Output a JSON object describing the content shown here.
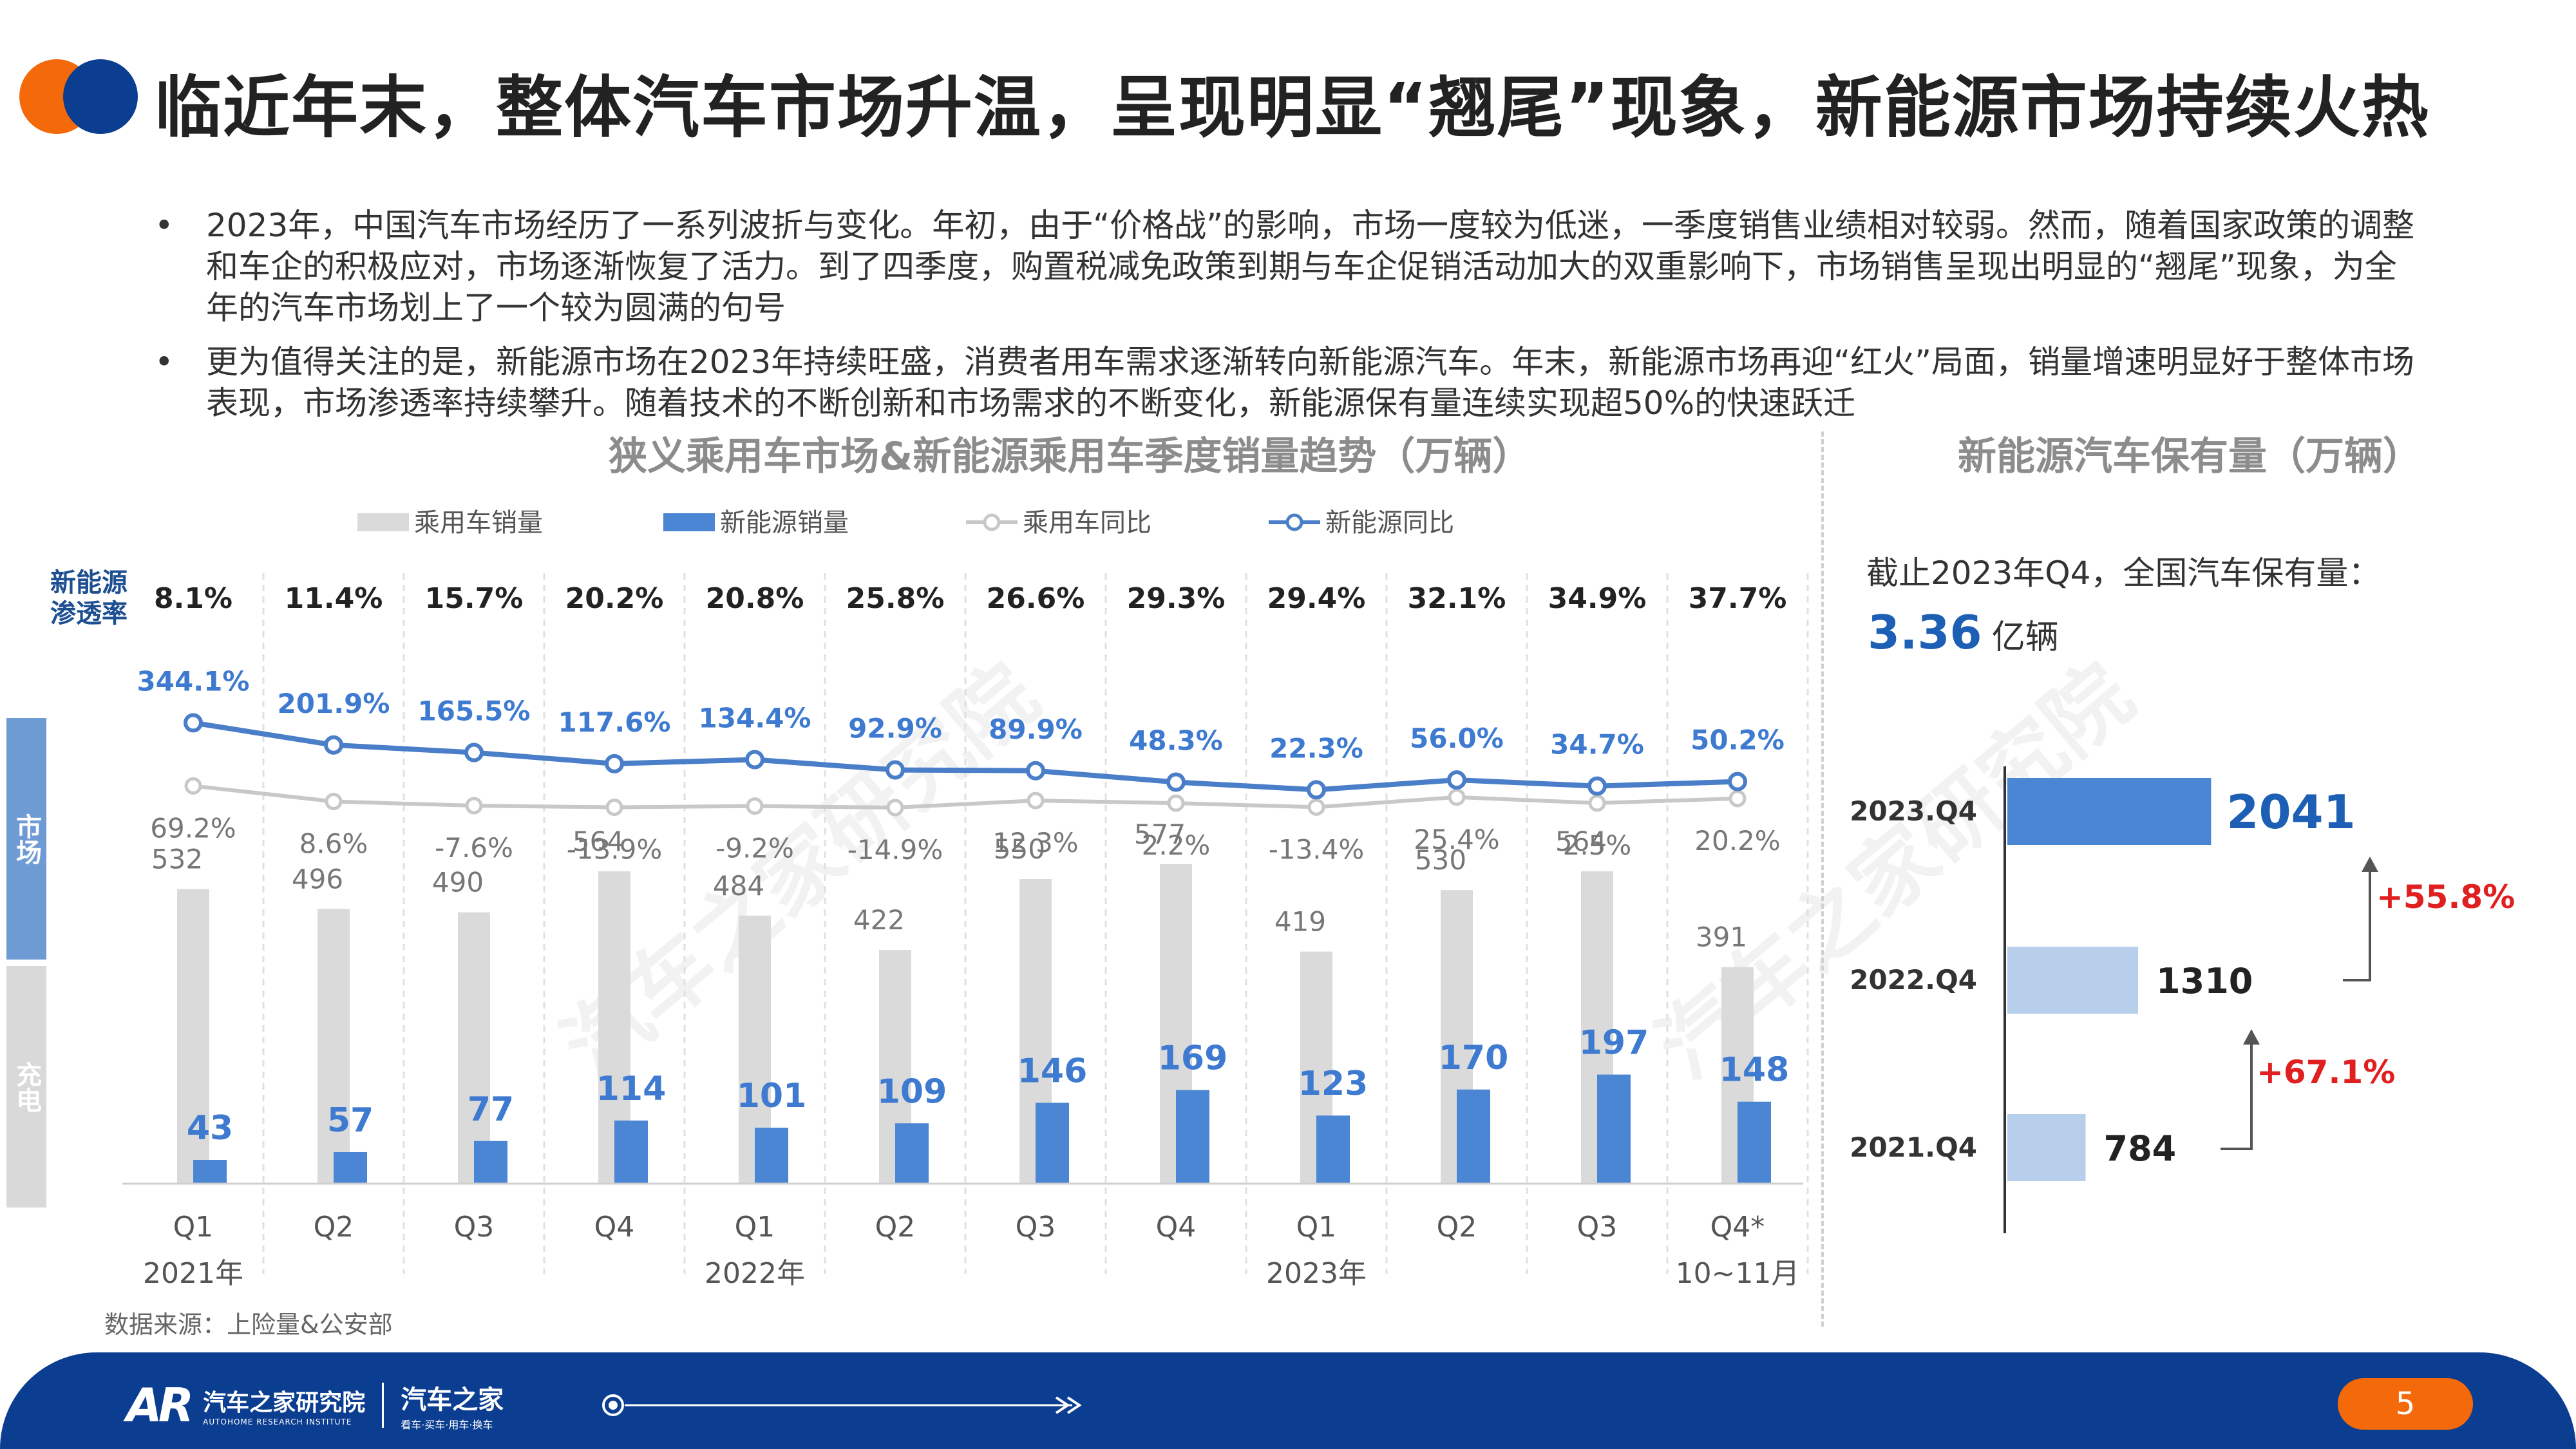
{
  "header": {
    "title": "临近年末，整体汽车市场升温，呈现明显“翘尾”现象，新能源市场持续火热",
    "colors": {
      "orange": "#f46a0b",
      "blue": "#0b3d91"
    }
  },
  "bullets": [
    {
      "marker": "•",
      "text": "2023年，中国汽车市场经历了一系列波折与变化。年初，由于“价格战”的影响，市场一度较为低迷，一季度销售业绩相对较弱。然而，随着国家政策的调整和车企的积极应对，市场逐渐恢复了活力。到了四季度，购置税减免政策到期与车企促销活动加大的双重影响下，市场销售呈现出明显的“翘尾”现象，为全年的汽车市场划上了一个较为圆满的句号"
    },
    {
      "marker": "•",
      "text": "更为值得关注的是，新能源市场在2023年持续旺盛，消费者用车需求逐渐转向新能源汽车。年末，新能源市场再迎“红火”局面，销量增速明显好于整体市场表现，市场渗透率持续攀升。随着技术的不断创新和市场需求的不断变化，新能源保有量连续实现超50%的快速跃迁"
    }
  ],
  "watermark": "汽车之家研究院",
  "side_tabs": {
    "market": "市场",
    "charging": "充电"
  },
  "source_note": "数据来源：上险量&公安部",
  "chart_data": [
    {
      "type": "bar",
      "title": "狭义乘用车市场&新能源乘用车季度销量趋势（万辆）",
      "legend": [
        "乘用车销量",
        "新能源销量",
        "乘用车同比",
        "新能源同比"
      ],
      "legend_position": "top",
      "penetration_label": "新能源渗透率",
      "penetration": [
        "8.1%",
        "11.4%",
        "15.7%",
        "20.2%",
        "20.8%",
        "25.8%",
        "26.6%",
        "29.3%",
        "29.4%",
        "32.1%",
        "34.9%",
        "37.7%"
      ],
      "categories": [
        "Q1",
        "Q2",
        "Q3",
        "Q4",
        "Q1",
        "Q2",
        "Q3",
        "Q4",
        "Q1",
        "Q2",
        "Q3",
        "Q4*"
      ],
      "year_labels": [
        {
          "label": "2021年",
          "index": 0
        },
        {
          "label": "2022年",
          "index": 4
        },
        {
          "label": "2023年",
          "index": 8
        },
        {
          "label": "10~11月",
          "index": 11
        }
      ],
      "series": [
        {
          "name": "乘用车销量",
          "kind": "bar",
          "color": "#dadada",
          "values": [
            532,
            496,
            490,
            564,
            484,
            422,
            550,
            577,
            419,
            530,
            564,
            391
          ]
        },
        {
          "name": "新能源销量",
          "kind": "bar",
          "color": "#4a86d4",
          "values": [
            43,
            57,
            77,
            114,
            101,
            109,
            146,
            169,
            123,
            170,
            197,
            148
          ]
        },
        {
          "name": "乘用车同比",
          "kind": "line",
          "color": "#c8c8c8",
          "unit": "%",
          "values": [
            69.2,
            8.6,
            -7.6,
            -13.9,
            -9.2,
            -14.9,
            12.3,
            2.2,
            -13.4,
            25.4,
            2.5,
            20.2
          ]
        },
        {
          "name": "新能源同比",
          "kind": "line",
          "color": "#4a7ec8",
          "unit": "%",
          "values": [
            344.1,
            201.9,
            165.5,
            117.6,
            134.4,
            92.9,
            89.9,
            48.3,
            22.3,
            56.0,
            34.7,
            50.2
          ]
        }
      ]
    },
    {
      "type": "bar",
      "orientation": "horizontal",
      "title": "新能源汽车保有量（万辆）",
      "note": "截止2023年Q4，全国汽车保有量：",
      "total_value": "3.36",
      "total_unit": "亿辆",
      "categories": [
        "2023.Q4",
        "2022.Q4",
        "2021.Q4"
      ],
      "values": [
        2041,
        1310,
        784
      ],
      "growth": [
        "+55.8%",
        "+67.1%"
      ],
      "colors": {
        "highlight": "#4a86d4",
        "normal": "#b8cfeb",
        "value_highlight": "#1d5fb4",
        "growth": "#e02020"
      }
    }
  ],
  "footer": {
    "logo_mark": "AR",
    "institute": "汽车之家研究院",
    "institute_en": "AUTOHOME RESEARCH INSTITUTE",
    "brand": "汽车之家",
    "brand_slogan": "看车·买车·用车·换车",
    "page_number": "5"
  }
}
